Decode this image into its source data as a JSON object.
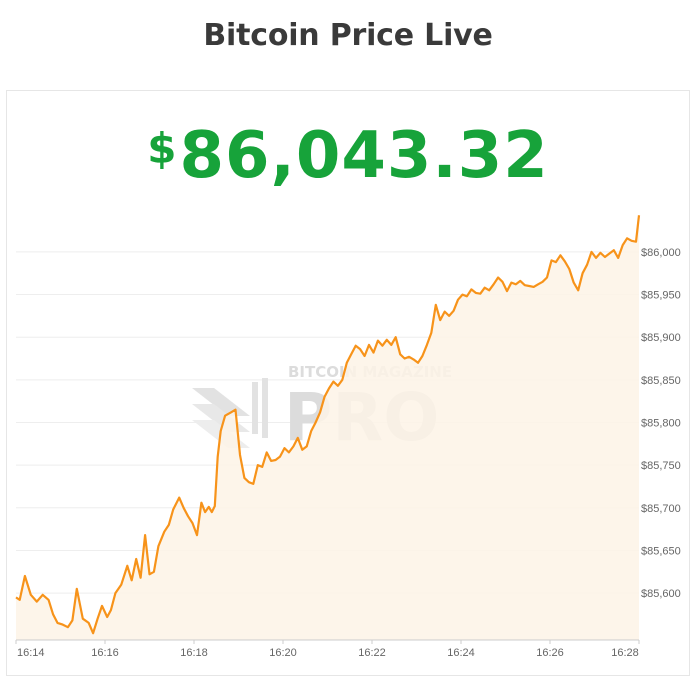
{
  "page": {
    "title": "Bitcoin Price Live"
  },
  "price": {
    "currency_symbol": "$",
    "value": "86,043.32"
  },
  "watermark": {
    "line1": "BITCOIN MAGAZINE",
    "line2": "PRO"
  },
  "colors": {
    "line": "#f7931a",
    "area": "#fdf3e6",
    "price": "#17a33a",
    "grid": "#eeeeee"
  },
  "chart_data": {
    "type": "area",
    "title": "",
    "xlabel": "",
    "ylabel": "",
    "grid": true,
    "y_axis_position": "right",
    "ylim": [
      85545,
      86055
    ],
    "xlim": [
      "16:14",
      "16:28"
    ],
    "x_ticks": [
      "16:14",
      "16:16",
      "16:18",
      "16:20",
      "16:22",
      "16:24",
      "16:26",
      "16:28"
    ],
    "y_ticks": [
      {
        "value": 85600,
        "label": "$85,600"
      },
      {
        "value": 85650,
        "label": "$85,650"
      },
      {
        "value": 85700,
        "label": "$85,700"
      },
      {
        "value": 85750,
        "label": "$85,750"
      },
      {
        "value": 85800,
        "label": "$85,800"
      },
      {
        "value": 85850,
        "label": "$85,850"
      },
      {
        "value": 85900,
        "label": "$85,900"
      },
      {
        "value": 85950,
        "label": "$85,950"
      },
      {
        "value": 86000,
        "label": "$86,000"
      }
    ],
    "series": [
      {
        "x": [
          "16:14:00",
          "16:14:05",
          "16:14:12",
          "16:14:20",
          "16:14:28",
          "16:14:36",
          "16:14:44",
          "16:14:50",
          "16:14:56",
          "16:15:03",
          "16:15:10",
          "16:15:16",
          "16:15:22",
          "16:15:30",
          "16:15:38",
          "16:15:44",
          "16:15:50",
          "16:15:56",
          "16:16:03",
          "16:16:08",
          "16:16:14",
          "16:16:22",
          "16:16:30",
          "16:16:36",
          "16:16:42",
          "16:16:48",
          "16:16:54",
          "16:17:00",
          "16:17:06",
          "16:17:12",
          "16:17:20",
          "16:17:26",
          "16:17:32",
          "16:17:40",
          "16:17:46",
          "16:17:52",
          "16:17:58",
          "16:18:04",
          "16:18:10",
          "16:18:15",
          "16:18:20",
          "16:18:24",
          "16:18:28",
          "16:18:32",
          "16:18:36",
          "16:18:42",
          "16:18:50",
          "16:18:56",
          "16:19:02",
          "16:19:08",
          "16:19:14",
          "16:19:20",
          "16:19:26",
          "16:19:32",
          "16:19:38",
          "16:19:44",
          "16:19:50",
          "16:19:56",
          "16:20:02",
          "16:20:08",
          "16:20:14",
          "16:20:20",
          "16:20:26",
          "16:20:32",
          "16:20:38",
          "16:20:44",
          "16:20:50",
          "16:20:56",
          "16:21:02",
          "16:21:08",
          "16:21:14",
          "16:21:20",
          "16:21:26",
          "16:21:32",
          "16:21:38",
          "16:21:44",
          "16:21:50",
          "16:21:56",
          "16:22:02",
          "16:22:08",
          "16:22:14",
          "16:22:20",
          "16:22:26",
          "16:22:32",
          "16:22:38",
          "16:22:44",
          "16:22:50",
          "16:22:56",
          "16:23:02",
          "16:23:08",
          "16:23:14",
          "16:23:20",
          "16:23:26",
          "16:23:32",
          "16:23:38",
          "16:23:44",
          "16:23:50",
          "16:23:56",
          "16:24:02",
          "16:24:08",
          "16:24:14",
          "16:24:20",
          "16:24:26",
          "16:24:32",
          "16:24:38",
          "16:24:44",
          "16:24:50",
          "16:24:56",
          "16:25:02",
          "16:25:08",
          "16:25:14",
          "16:25:20",
          "16:25:26",
          "16:25:32",
          "16:25:38",
          "16:25:44",
          "16:25:50",
          "16:25:56",
          "16:26:02",
          "16:26:08",
          "16:26:14",
          "16:26:20",
          "16:26:26",
          "16:26:32",
          "16:26:38",
          "16:26:44",
          "16:26:50",
          "16:26:56",
          "16:27:02",
          "16:27:08",
          "16:27:14",
          "16:27:20",
          "16:27:26",
          "16:27:32",
          "16:27:38",
          "16:27:44",
          "16:27:50",
          "16:27:56",
          "16:28:00"
        ],
        "values": [
          85595,
          85592,
          85620,
          85598,
          85590,
          85598,
          85592,
          85575,
          85565,
          85563,
          85560,
          85568,
          85605,
          85570,
          85565,
          85553,
          85570,
          85585,
          85572,
          85580,
          85600,
          85610,
          85632,
          85615,
          85640,
          85618,
          85668,
          85622,
          85625,
          85655,
          85672,
          85680,
          85698,
          85712,
          85700,
          85690,
          85682,
          85668,
          85706,
          85695,
          85701,
          85695,
          85702,
          85760,
          85790,
          85808,
          85812,
          85815,
          85762,
          85735,
          85730,
          85728,
          85750,
          85748,
          85765,
          85755,
          85756,
          85760,
          85770,
          85765,
          85772,
          85782,
          85768,
          85772,
          85790,
          85800,
          85812,
          85830,
          85840,
          85848,
          85843,
          85850,
          85870,
          85880,
          85890,
          85886,
          85878,
          85891,
          85882,
          85896,
          85890,
          85897,
          85891,
          85900,
          85880,
          85875,
          85877,
          85874,
          85870,
          85878,
          85891,
          85905,
          85938,
          85920,
          85930,
          85925,
          85931,
          85944,
          85950,
          85948,
          85956,
          85952,
          85951,
          85958,
          85955,
          85962,
          85970,
          85965,
          85954,
          85964,
          85962,
          85966,
          85961,
          85960,
          85959,
          85962,
          85965,
          85970,
          85990,
          85988,
          85996,
          85989,
          85980,
          85964,
          85955,
          85975,
          85985,
          86000,
          85993,
          85999,
          85994,
          85998,
          86002,
          85993,
          86008,
          86016,
          86013,
          86012,
          86043
        ]
      }
    ]
  }
}
